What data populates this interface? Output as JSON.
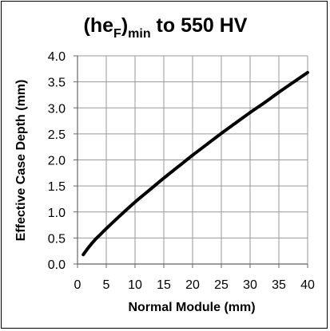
{
  "chart_data": {
    "type": "line",
    "title": {
      "part1": "(he",
      "sub1": "F",
      "part2": ")",
      "sub2": "min",
      "part3": " to 550 HV"
    },
    "xlabel": "Normal Module (mm)",
    "ylabel": "Effective Case Depth (mm)",
    "xlim": [
      0,
      40
    ],
    "ylim": [
      0,
      4
    ],
    "x_ticks": [
      "0",
      "5",
      "10",
      "15",
      "20",
      "25",
      "30",
      "35",
      "40"
    ],
    "y_ticks": [
      "0.0",
      "0.5",
      "1.0",
      "1.5",
      "2.0",
      "2.5",
      "3.0",
      "3.5",
      "4.0"
    ],
    "grid": true,
    "legend": "none",
    "series": [
      {
        "color": "#000000",
        "x": [
          1,
          2,
          3,
          4,
          5,
          7.5,
          10,
          12.5,
          15,
          17.5,
          20,
          22.5,
          25,
          27.5,
          30,
          32.5,
          35,
          37.5,
          40
        ],
        "y": [
          0.18,
          0.33,
          0.46,
          0.57,
          0.68,
          0.94,
          1.19,
          1.42,
          1.65,
          1.87,
          2.09,
          2.3,
          2.51,
          2.71,
          2.91,
          3.1,
          3.3,
          3.49,
          3.68
        ]
      }
    ],
    "grid_color": "#999999",
    "axis_color": "#666666",
    "line_color": "#000000"
  }
}
